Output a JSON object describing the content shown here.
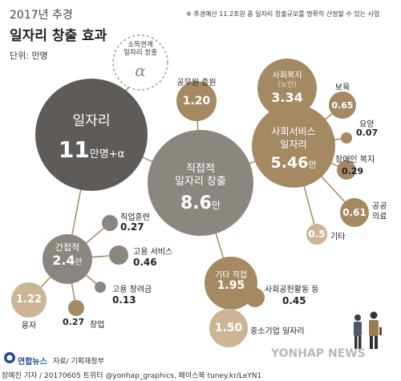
{
  "header": {
    "year_title": "2017년 추경",
    "main_title": "일자리 창출 효과",
    "unit": "단위: 만명",
    "note": "※ 추경예산 11.2조원 중 일자리 창출규모를 명확히 산정할 수 있는 사업"
  },
  "colors": {
    "dark": "#5e5b58",
    "gray": "#8c8681",
    "brown": "#a58962",
    "light_brown": "#ccb595",
    "line": "#a58962"
  },
  "total": {
    "label": "일자리",
    "value": "11",
    "suffix": "만명+α"
  },
  "income_linked": {
    "line1": "소득연계",
    "line2": "일자리 창출",
    "value": "α"
  },
  "direct": {
    "line1": "직접적",
    "line2": "일자리 창출",
    "value": "8.6",
    "unit": "만"
  },
  "civil_servants": {
    "label": "공무원 증원",
    "value": "1.20"
  },
  "social_welfare": {
    "label": "사회복지",
    "sublabel": "(노인)",
    "value": "3.34"
  },
  "social_service": {
    "line1": "사회서비스",
    "line2": "일자리",
    "value": "5.46",
    "unit": "만",
    "items": [
      {
        "label": "보육",
        "value": "0.65"
      },
      {
        "label": "요양",
        "value": "0.07"
      },
      {
        "label": "장애인 복지",
        "value": "0.29"
      },
      {
        "label_line1": "공공",
        "label_line2": "의료",
        "value": "0.61"
      },
      {
        "label": "기타",
        "value": "0.5"
      }
    ]
  },
  "other_direct": {
    "label": "기타 직접",
    "value": "1.95",
    "items": [
      {
        "label": "사회공헌활동 등",
        "value": "0.45"
      },
      {
        "label": "중소기업 일자리",
        "value": "1.50"
      }
    ]
  },
  "indirect": {
    "label": "간접적",
    "value": "2.4",
    "unit": "만",
    "items": [
      {
        "label": "직업훈련",
        "value": "0.27"
      },
      {
        "label": "고용 서비스",
        "value": "0.46"
      },
      {
        "label": "고용 장려금",
        "value": "0.13"
      },
      {
        "label": "융자",
        "value": "1.22"
      },
      {
        "label": "창업",
        "value": "0.27"
      }
    ]
  },
  "footer": {
    "logo": "연합뉴스",
    "source": "자료/ 기획재정부",
    "credit": "장예진 기자 / 20170605 트위터 @yonhap_graphics, 페이스북 tuney.kr/LeYN1",
    "watermark": "YONHAP NEWS"
  }
}
